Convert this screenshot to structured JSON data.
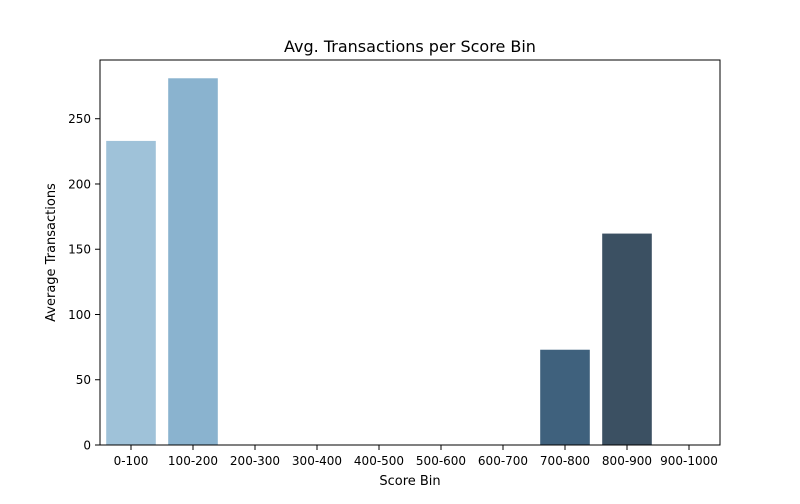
{
  "chart_data": {
    "type": "bar",
    "title": "Avg. Transactions per Score Bin",
    "xlabel": "Score Bin",
    "ylabel": "Average Transactions",
    "categories": [
      "0-100",
      "100-200",
      "200-300",
      "300-400",
      "400-500",
      "500-600",
      "600-700",
      "700-800",
      "800-900",
      "900-1000"
    ],
    "values": [
      233,
      281,
      0,
      0,
      0,
      0,
      0,
      73,
      162,
      0
    ],
    "colors": [
      "#9fc2d9",
      "#8ab3cf",
      "#7aa3c2",
      "#6b94b5",
      "#5d85a7",
      "#4f7697",
      "#466b89",
      "#3f617d",
      "#3b5062",
      "#324453"
    ],
    "ylim": [
      0,
      295
    ],
    "yticks": [
      0,
      50,
      100,
      150,
      200,
      250
    ],
    "grid": false,
    "legend": "none"
  }
}
